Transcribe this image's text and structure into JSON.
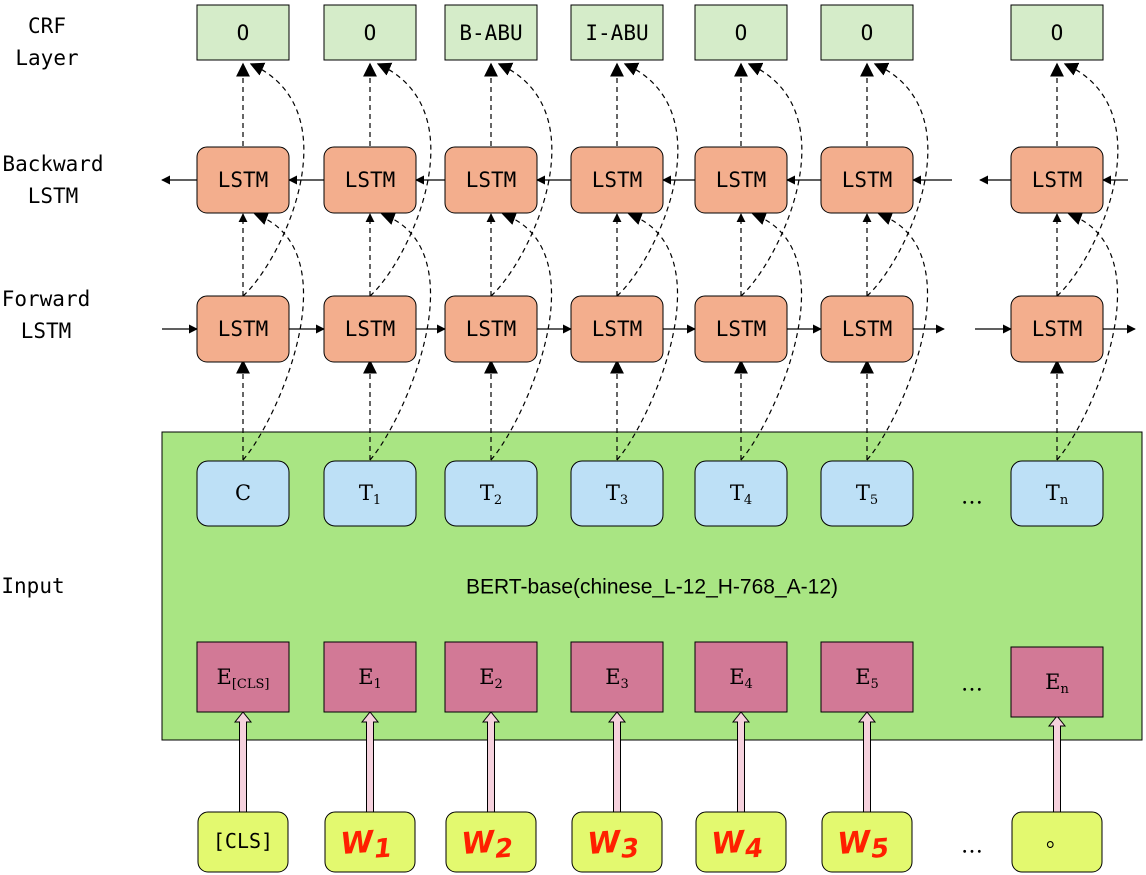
{
  "row_labels": {
    "crf": "CRF\nLayer",
    "backward": "Backward\nLSTM",
    "forward": "Forward\nLSTM",
    "input": "Input"
  },
  "crf_tags": [
    "O",
    "O",
    "B-ABU",
    "I-ABU",
    "O",
    "O",
    "O"
  ],
  "lstm_cell_label": "LSTM",
  "bert_title": "BERT-base(chinese_L-12_H-768_A-12)",
  "outputs": [
    {
      "base": "C",
      "sub": ""
    },
    {
      "base": "T",
      "sub": "1"
    },
    {
      "base": "T",
      "sub": "2"
    },
    {
      "base": "T",
      "sub": "3"
    },
    {
      "base": "T",
      "sub": "4"
    },
    {
      "base": "T",
      "sub": "5"
    },
    {
      "base": "T",
      "sub": "n"
    }
  ],
  "embeddings": [
    {
      "base": "E",
      "sub": "[CLS]"
    },
    {
      "base": "E",
      "sub": "1"
    },
    {
      "base": "E",
      "sub": "2"
    },
    {
      "base": "E",
      "sub": "3"
    },
    {
      "base": "E",
      "sub": "4"
    },
    {
      "base": "E",
      "sub": "5"
    },
    {
      "base": "E",
      "sub": "n"
    }
  ],
  "tokens": [
    "[CLS]",
    "W1",
    "W2",
    "W3",
    "W4",
    "W5",
    "。"
  ],
  "ellipsis": "…",
  "colors": {
    "crf_fill": "#d5ecc9",
    "lstm_fill": "#f3ae8d",
    "bert_fill": "#a9e583",
    "output_fill": "#bde0f6",
    "embed_fill": "#d27996",
    "token_fill": "#e3f96f",
    "handwriting": "#ff1f00",
    "arrow_pink": "#f5d1dd"
  }
}
